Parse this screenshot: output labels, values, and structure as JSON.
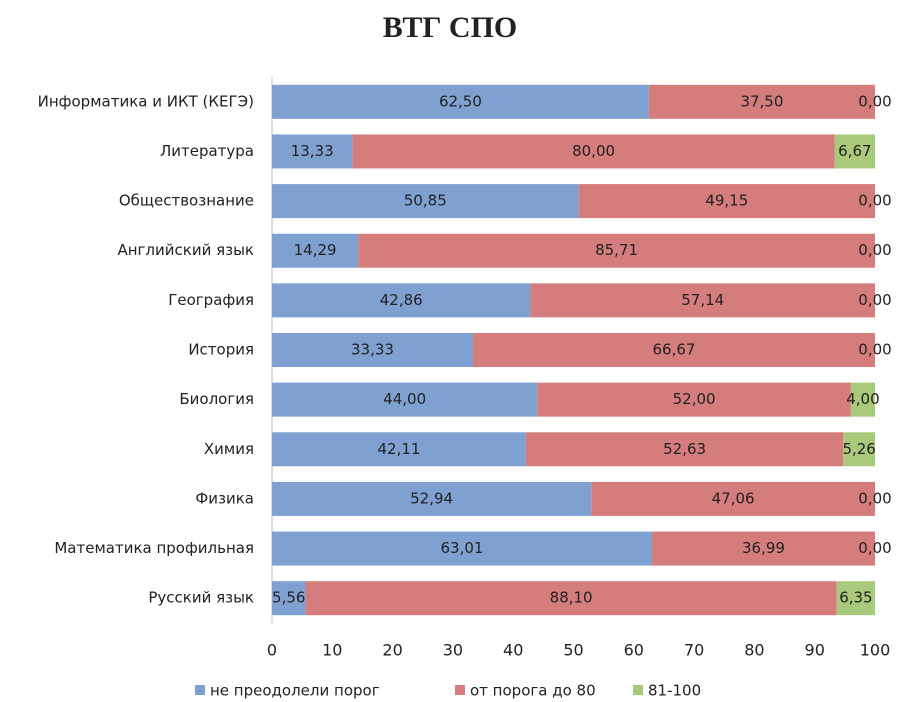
{
  "chart_data": {
    "type": "stacked-barh",
    "title": "ВТГ СПО",
    "categories": [
      "Информатика и ИКТ (КЕГЭ)",
      "Литература",
      "Обществознание",
      "Английский язык",
      "География",
      "История",
      "Биология",
      "Химия",
      "Физика",
      "Математика профильная",
      "Русский язык"
    ],
    "series": [
      {
        "name": "не преодолели порог",
        "color": "#7fa1d1",
        "values": [
          62.5,
          13.33,
          50.85,
          14.29,
          42.86,
          33.33,
          44,
          42.11,
          52.94,
          63.01,
          5.56
        ],
        "value_labels": [
          "62,50",
          "13,33",
          "50,85",
          "14,29",
          "42,86",
          "33,33",
          "44,00",
          "42,11",
          "52,94",
          "63,01",
          "5,56"
        ]
      },
      {
        "name": "от порога до 80",
        "color": "#d57c7c",
        "values": [
          37.5,
          80,
          49.15,
          85.71,
          57.14,
          66.67,
          52,
          52.63,
          47.06,
          36.99,
          88.1
        ],
        "value_labels": [
          "37,50",
          "80,00",
          "49,15",
          "85,71",
          "57,14",
          "66,67",
          "52,00",
          "52,63",
          "47,06",
          "36,99",
          "88,10"
        ]
      },
      {
        "name": "81-100",
        "color": "#a9c97b",
        "values": [
          0,
          6.67,
          0,
          0,
          0,
          0,
          4,
          5.26,
          0,
          0,
          6.35
        ],
        "value_labels": [
          "0,00",
          "6,67",
          "0,00",
          "0,00",
          "0,00",
          "0,00",
          "4,00",
          "5,26",
          "0,00",
          "0,00",
          "6,35"
        ]
      }
    ],
    "xlim": [
      0,
      100
    ],
    "xticks": [
      0,
      10,
      20,
      30,
      40,
      50,
      60,
      70,
      80,
      90,
      100
    ],
    "grid": false,
    "legend": "bottom"
  }
}
